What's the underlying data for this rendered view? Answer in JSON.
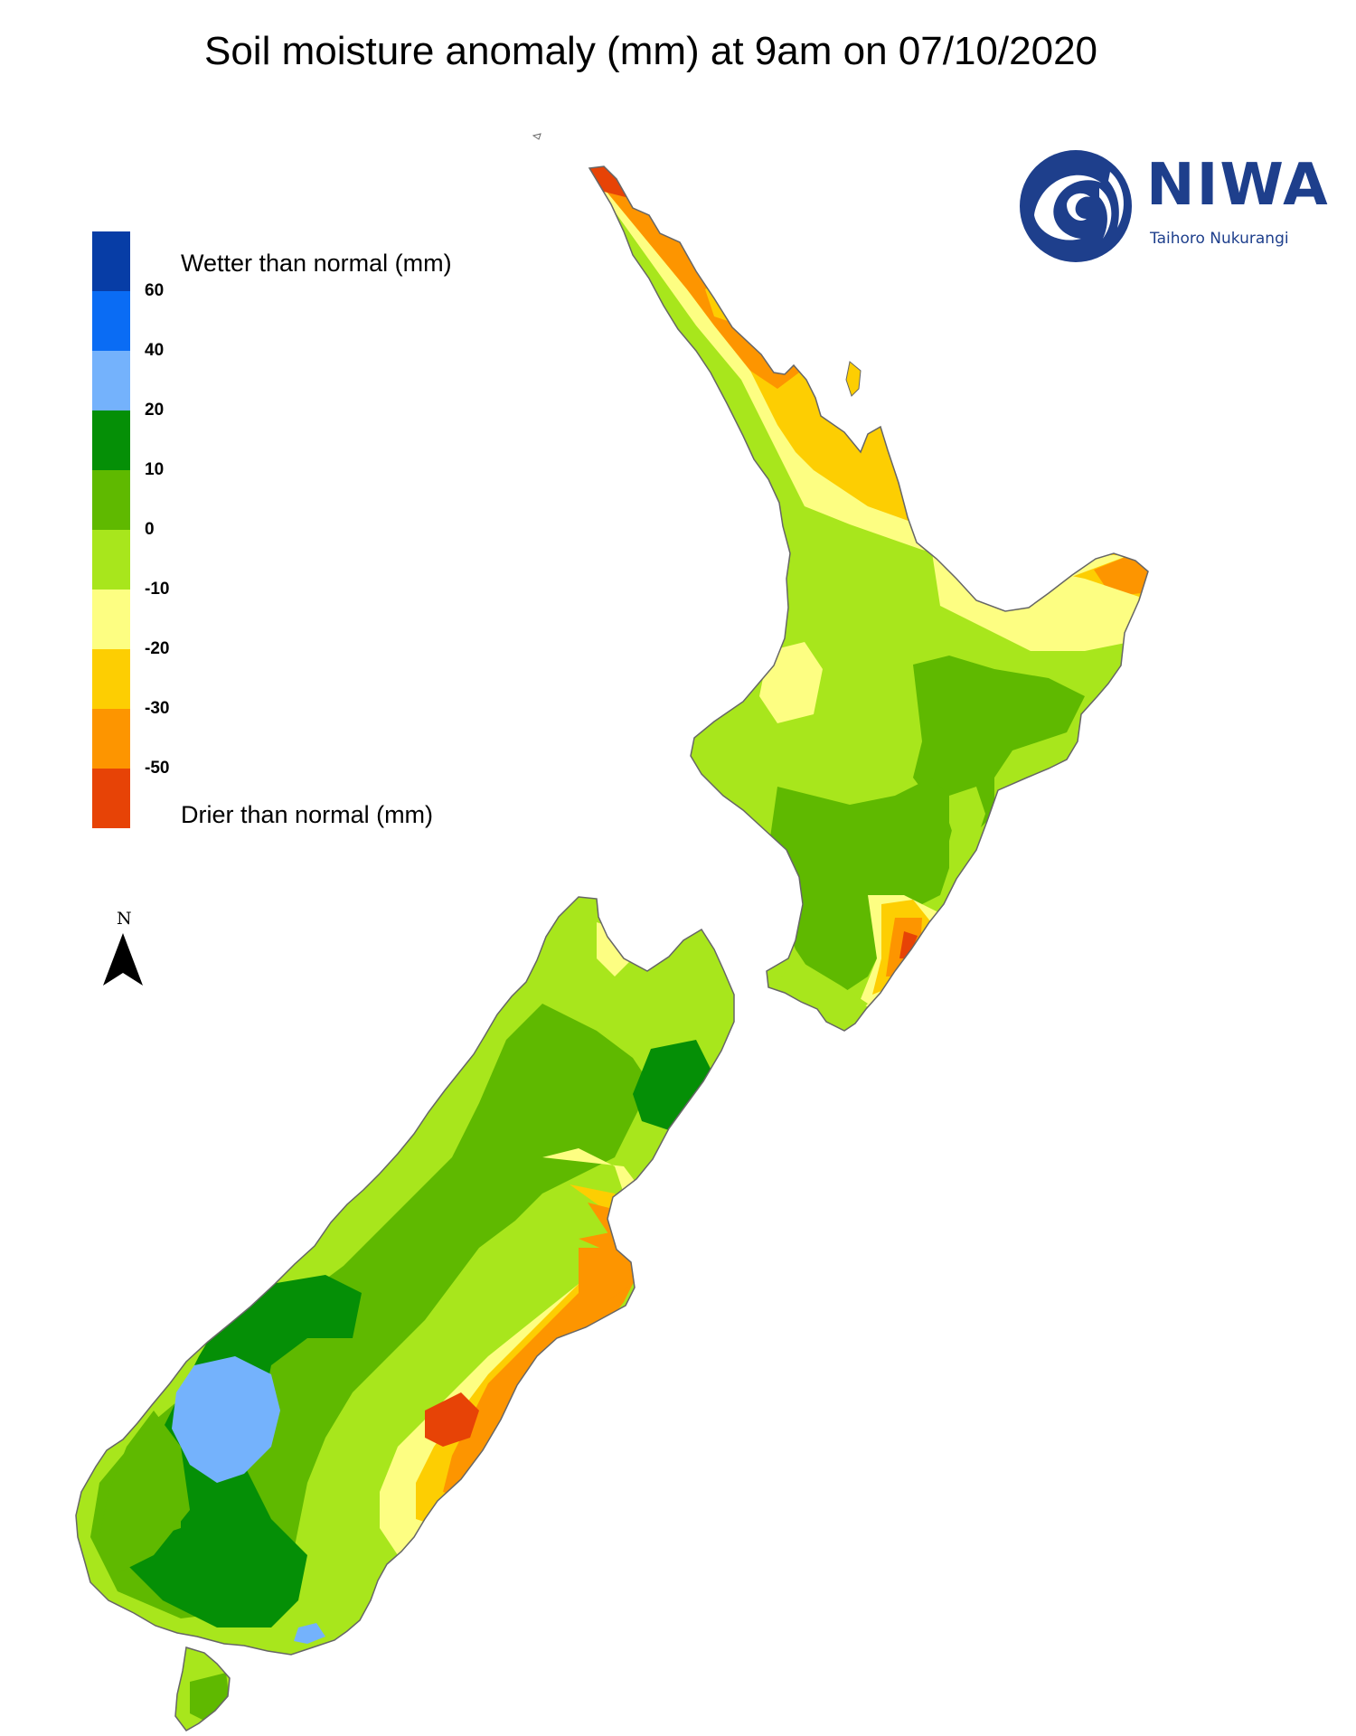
{
  "title": "Soil moisture anomaly (mm) at 9am on 07/10/2020",
  "legend": {
    "wetter_label": "Wetter than normal (mm)",
    "drier_label": "Drier than normal (mm)",
    "bins": [
      {
        "color": "#073da6"
      },
      {
        "color": "#0a6cf4"
      },
      {
        "color": "#74b2fc"
      },
      {
        "color": "#058f06"
      },
      {
        "color": "#5fb900"
      },
      {
        "color": "#a8e61c"
      },
      {
        "color": "#fdfe82"
      },
      {
        "color": "#fdce02"
      },
      {
        "color": "#fd9500"
      },
      {
        "color": "#e74306"
      }
    ],
    "ticks": [
      "60",
      "40",
      "20",
      "10",
      "0",
      "-10",
      "-20",
      "-30",
      "-50"
    ]
  },
  "north_arrow": {
    "label": "N"
  },
  "logo": {
    "name": "NIWA",
    "subtitle": "Taihoro Nukurangi",
    "icon": "niwa-wave-icon"
  },
  "colors": {
    "very_wet": "#073da6",
    "wet_40_60": "#0a6cf4",
    "wet_20_40": "#74b2fc",
    "wet_10_20": "#058f06",
    "wet_0_10": "#5fb900",
    "dry_0_10": "#a8e61c",
    "dry_10_20": "#fdfe82",
    "dry_20_30": "#fdce02",
    "dry_30_50": "#fd9500",
    "very_dry": "#e74306",
    "coast": "#666666"
  }
}
